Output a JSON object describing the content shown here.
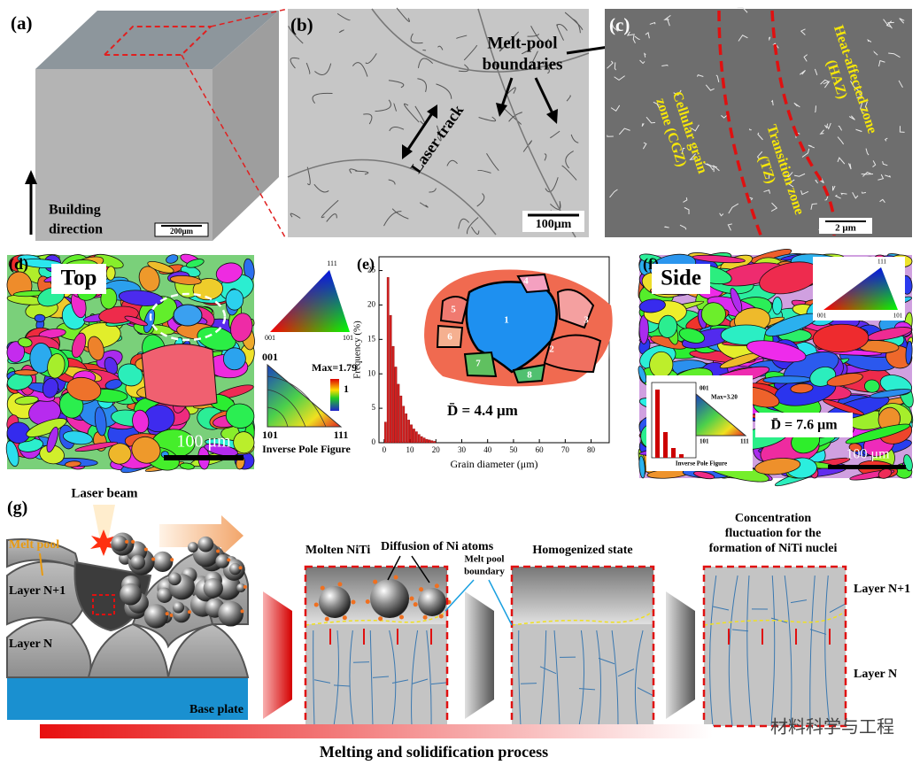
{
  "panels": {
    "a": {
      "label": "(a)",
      "direction": [
        "Building",
        "direction"
      ],
      "scale": "200μm"
    },
    "b": {
      "label": "(b)",
      "laser_track": "Laser track",
      "boundaries": [
        "Melt-pool",
        "boundaries"
      ],
      "scale": "100μm"
    },
    "c": {
      "label": "(c)",
      "zones": [
        [
          "Cellular grain",
          "zone (CGZ)"
        ],
        [
          "Transition zone",
          "(TZ)"
        ],
        [
          "Heat-affected zone",
          "(HAZ)"
        ]
      ],
      "scale": "2 μm"
    },
    "d": {
      "label": "(d)",
      "view": "Top",
      "scale": "100 μm",
      "ipf_key": [
        "111",
        "001",
        "101"
      ],
      "ipf": {
        "corners": [
          "001",
          "101",
          "111"
        ],
        "max": "Max=1.79",
        "min": "1",
        "caption": "Inverse Pole Figure"
      }
    },
    "f": {
      "label": "(f)",
      "view": "Side",
      "scale": "100 μm",
      "mean": "D̄ = 7.6 μm",
      "ipf_key": [
        "111",
        "001",
        "101"
      ],
      "ipf": {
        "corners": [
          "001",
          "101",
          "111"
        ],
        "max": "Max=3.20",
        "caption": "Inverse Pole Figure"
      }
    },
    "g": {
      "label": "(g)",
      "laser_beam": "Laser beam",
      "melt_pool": "Melt pool",
      "layer_top": "Layer N+1",
      "layer_bottom": "Layer N",
      "base_plate": "Base plate",
      "molten": "Molten NiTi",
      "diffusion": "Diffusion of Ni atoms",
      "boundary": [
        "Melt pool",
        "boundary"
      ],
      "homogenized": "Homogenized state",
      "fluctuation": [
        "Concentration",
        "fluctuation for the",
        "formation of NiTi nuclei"
      ],
      "right_layer_top": "Layer N+1",
      "right_layer_bottom": "Layer N",
      "process": "Melting and solidification process"
    },
    "watermark": "材料科学与工程"
  },
  "chart_data": {
    "type": "histogram",
    "panel_label": "(e)",
    "x_label": "Grain diameter (μm)",
    "y_label": "Frequency (%)",
    "annotation": "D̄ = 4.4 μm",
    "inset_labels": [
      "1",
      "2",
      "3",
      "4",
      "5",
      "6",
      "7",
      "8"
    ],
    "bins": [
      0,
      1,
      2,
      3,
      4,
      5,
      6,
      7,
      8,
      9,
      10,
      11,
      12,
      13,
      14,
      15,
      16,
      17,
      18,
      19,
      20
    ],
    "values": [
      3,
      24,
      18.5,
      14,
      11,
      8.5,
      6.8,
      5.3,
      4.2,
      3.3,
      2.6,
      2,
      1.6,
      1.2,
      0.9,
      0.7,
      0.5,
      0.4,
      0.3,
      0.2
    ],
    "color": "#d42020",
    "xlim": [
      -2,
      87
    ],
    "ylim": [
      0,
      27
    ],
    "xticks": [
      0,
      10,
      20,
      30,
      40,
      50,
      60,
      70,
      80
    ],
    "yticks": [
      0,
      5,
      10,
      15,
      20,
      25
    ]
  }
}
